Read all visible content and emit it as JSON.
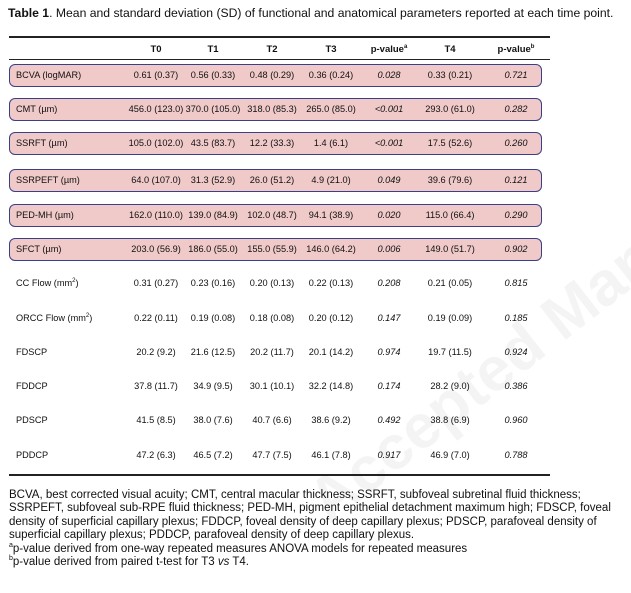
{
  "caption": {
    "label": "Table 1",
    "text": ". Mean and standard deviation (SD) of functional and anatomical parameters reported at each time point."
  },
  "watermark": "Accepted Manuscript",
  "headers": [
    {
      "text": "T0",
      "sup": ""
    },
    {
      "text": "T1",
      "sup": ""
    },
    {
      "text": "T2",
      "sup": ""
    },
    {
      "text": "T3",
      "sup": ""
    },
    {
      "text": "p-value",
      "sup": "a"
    },
    {
      "text": "T4",
      "sup": ""
    },
    {
      "text": "p-value",
      "sup": "b"
    }
  ],
  "rows": [
    {
      "label": "BCVA (logMAR)",
      "unit_sup": "",
      "highlight": true,
      "values": [
        "0.61 (0.37)",
        "0.56 (0.33)",
        "0.48 (0.29)",
        "0.36 (0.24)",
        "0.028",
        "0.33 (0.21)",
        "0.721"
      ]
    },
    {
      "label": "CMT (µm)",
      "unit_sup": "",
      "highlight": true,
      "values": [
        "456.0 (123.0)",
        "370.0 (105.0)",
        "318.0 (85.3)",
        "265.0 (85.0)",
        "<0.001",
        "293.0 (61.0)",
        "0.282"
      ]
    },
    {
      "label": "SSRFT (µm)",
      "unit_sup": "",
      "highlight": true,
      "values": [
        "105.0 (102.0)",
        "43.5 (83.7)",
        "12.2 (33.3)",
        "1.4 (6.1)",
        "<0.001",
        "17.5 (52.6)",
        "0.260"
      ]
    },
    {
      "label": "SSRPEFT (µm)",
      "unit_sup": "",
      "highlight": true,
      "values": [
        "64.0 (107.0)",
        "31.3 (52.9)",
        "26.0 (51.2)",
        "4.9 (21.0)",
        "0.049",
        "39.6 (79.6)",
        "0.121"
      ]
    },
    {
      "label": "PED-MH (µm)",
      "unit_sup": "",
      "highlight": true,
      "values": [
        "162.0 (110.0)",
        "139.0 (84.9)",
        "102.0 (48.7)",
        "94.1 (38.9)",
        "0.020",
        "115.0 (66.4)",
        "0.290"
      ]
    },
    {
      "label": "SFCT (µm)",
      "unit_sup": "",
      "highlight": true,
      "values": [
        "203.0 (56.9)",
        "186.0 (55.0)",
        "155.0 (55.9)",
        "146.0 (64.2)",
        "0.006",
        "149.0 (51.7)",
        "0.902"
      ]
    },
    {
      "label": "CC Flow (mm",
      "unit_sup": "2",
      "label_end": ")",
      "highlight": false,
      "values": [
        "0.31 (0.27)",
        "0.23 (0.16)",
        "0.20 (0.13)",
        "0.22 (0.13)",
        "0.208",
        "0.21 (0.05)",
        "0.815"
      ]
    },
    {
      "label": "ORCC Flow (mm",
      "unit_sup": "2",
      "label_end": ")",
      "highlight": false,
      "values": [
        "0.22 (0.11)",
        "0.19 (0.08)",
        "0.18 (0.08)",
        "0.20 (0.12)",
        "0.147",
        "0.19 (0.09)",
        "0.185"
      ]
    },
    {
      "label": "FDSCP",
      "unit_sup": "",
      "highlight": false,
      "values": [
        "20.2 (9.2)",
        "21.6 (12.5)",
        "20.2 (11.7)",
        "20.1 (14.2)",
        "0.974",
        "19.7 (11.5)",
        "0.924"
      ]
    },
    {
      "label": "FDDCP",
      "unit_sup": "",
      "highlight": false,
      "values": [
        "37.8 (11.7)",
        "34.9 (9.5)",
        "30.1 (10.1)",
        "32.2 (14.8)",
        "0.174",
        "28.2 (9.0)",
        "0.386"
      ]
    },
    {
      "label": "PDSCP",
      "unit_sup": "",
      "highlight": false,
      "values": [
        "41.5 (8.5)",
        "38.0 (7.6)",
        "40.7 (6.6)",
        "38.6 (9.2)",
        "0.492",
        "38.8 (6.9)",
        "0.960"
      ]
    },
    {
      "label": "PDDCP",
      "unit_sup": "",
      "highlight": false,
      "values": [
        "47.2 (6.3)",
        "46.5 (7.2)",
        "47.7 (7.5)",
        "46.1 (7.8)",
        "0.917",
        "46.9 (7.0)",
        "0.788"
      ]
    }
  ],
  "footer": {
    "abbreviations": "BCVA, best corrected visual acuity; CMT, central macular thickness; SSRFT, subfoveal subretinal fluid thickness; SSRPEFT, subfoveal sub-RPE fluid thickness; PED-MH, pigment epithelial detachment maximum high; FDSCP, foveal density of superficial capillary plexus; FDDCP, foveal density of deep capillary plexus; PDSCP, parafoveal density of superficial capillary plexus; PDDCP, parafoveal density of deep capillary plexus.",
    "note_a_sup": "a",
    "note_a": "p-value derived from one-way repeated measures ANOVA models for repeated measures",
    "note_b_sup": "b",
    "note_b_pre": "p-value derived from paired t-test for T3 ",
    "note_b_vs": "vs",
    "note_b_post": " T4."
  },
  "colors": {
    "highlight_fill": "#f0c9c9",
    "highlight_border": "#3a3f8a"
  }
}
